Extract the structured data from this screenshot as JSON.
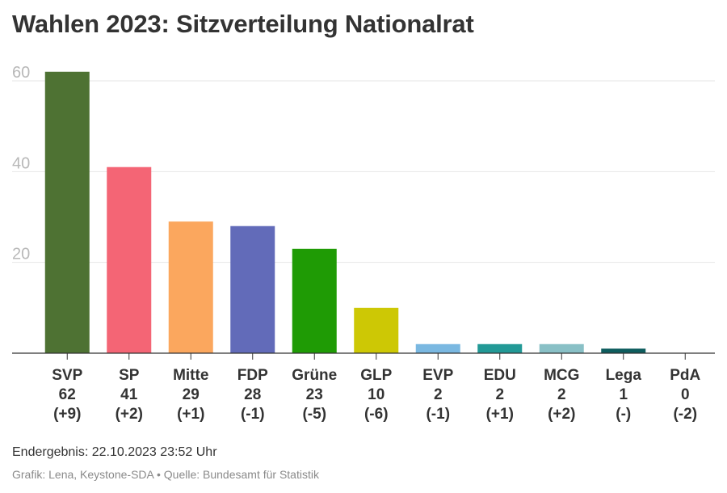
{
  "title": "Wahlen 2023: Sitzverteilung Nationalrat",
  "footer": {
    "result": "Endergebnis: 22.10.2023 23:52 Uhr",
    "credit": "Grafik: Lena, Keystone-SDA • Quelle: Bundesamt für Statistik"
  },
  "chart_data": {
    "type": "bar",
    "title": "Wahlen 2023: Sitzverteilung Nationalrat",
    "xlabel": "",
    "ylabel": "",
    "ylim": [
      0,
      60
    ],
    "yticks": [
      20,
      40,
      60
    ],
    "grid": true,
    "categories": [
      "SVP",
      "SP",
      "Mitte",
      "FDP",
      "Grüne",
      "GLP",
      "EVP",
      "EDU",
      "MCG",
      "Lega",
      "PdA"
    ],
    "values": [
      62,
      41,
      29,
      28,
      23,
      10,
      2,
      2,
      2,
      1,
      0
    ],
    "changes": [
      "(+9)",
      "(+2)",
      "(+1)",
      "(-1)",
      "(-5)",
      "(-6)",
      "(-1)",
      "(+1)",
      "(+2)",
      "(-)",
      "(-2)"
    ],
    "colors": [
      "#4e7233",
      "#f46575",
      "#fba75e",
      "#626bb9",
      "#1f9b05",
      "#cdc805",
      "#7ab8e1",
      "#229996",
      "#89c0c6",
      "#0e5d5e",
      "#c1121b"
    ]
  }
}
